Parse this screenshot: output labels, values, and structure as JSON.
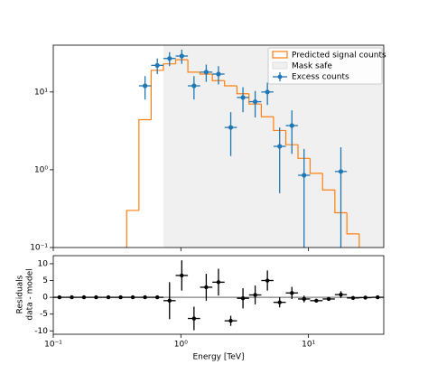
{
  "chart_data": [
    {
      "type": "histogram",
      "bins": [
        0.1,
        0.125,
        0.156,
        0.194,
        0.242,
        0.302,
        0.376,
        0.469,
        0.585,
        0.73,
        0.91,
        1.135,
        1.415,
        1.765,
        2.2,
        2.75,
        3.42,
        4.27,
        5.32,
        6.64,
        8.28,
        10.3,
        12.9,
        16.1,
        20.0,
        25.0,
        31.2,
        38.9
      ],
      "series": [
        {
          "name": "Predicted signal counts",
          "color": "#ff7f0e",
          "values": [
            0,
            0,
            0,
            0,
            0,
            0,
            0.3,
            4.4,
            19,
            23,
            26,
            18,
            17,
            14,
            12,
            9.5,
            7,
            4.8,
            3.2,
            2.1,
            1.4,
            0.9,
            0.55,
            0.28,
            0.15,
            0,
            0
          ]
        },
        {
          "name": "Excess counts",
          "color": "#1f77b4",
          "values": [
            null,
            null,
            null,
            null,
            null,
            null,
            null,
            12,
            22,
            27,
            29,
            12,
            18,
            17,
            3.5,
            8.5,
            7.5,
            10,
            2,
            3.7,
            0.85,
            null,
            null,
            0.95,
            null,
            null,
            null
          ],
          "errors": [
            null,
            null,
            null,
            null,
            null,
            null,
            null,
            4,
            5,
            5.5,
            6,
            4,
            4.5,
            4.5,
            2,
            3,
            2.8,
            3.2,
            1.5,
            2.1,
            1,
            null,
            null,
            1,
            null,
            null,
            null
          ]
        }
      ],
      "mask_safe": {
        "name": "Mask safe",
        "color": "#f0f0f0",
        "xlim": [
          0.73,
          38.9
        ]
      },
      "log_x": true,
      "log_y": true,
      "xlim": [
        0.1,
        38.9
      ],
      "ylim": [
        0.1,
        40
      ],
      "yticks": [
        {
          "value": 0.1,
          "label": "10⁻¹"
        },
        {
          "value": 1,
          "label": "10⁰"
        },
        {
          "value": 10,
          "label": "10¹"
        }
      ],
      "legend": "upper right"
    },
    {
      "type": "errorbar",
      "series": [
        {
          "color": "#000000",
          "values": [
            0,
            0,
            0,
            0,
            0,
            0,
            0,
            0,
            0,
            -1,
            6.5,
            -6.3,
            3,
            4.5,
            -7,
            -0.3,
            0.7,
            5,
            -1.5,
            1.3,
            -0.5,
            -1,
            -0.5,
            0.8,
            -0.2,
            -0.1,
            0
          ],
          "errors": [
            0,
            0,
            0,
            0,
            0,
            0,
            0,
            0,
            0,
            5.5,
            4.5,
            3.5,
            4,
            4,
            1.5,
            3,
            2.8,
            3,
            1.5,
            1.8,
            1,
            0.4,
            0.4,
            1,
            0.3,
            0.2,
            0.2
          ]
        }
      ],
      "log_x": true,
      "xlim": [
        0.1,
        38.9
      ],
      "ylim": [
        -11,
        12.4
      ],
      "xticks": [
        {
          "value": 0.1,
          "label": "10⁻¹"
        },
        {
          "value": 1,
          "label": "10⁰"
        },
        {
          "value": 10,
          "label": "10¹"
        }
      ],
      "yticks": [
        -10,
        -5,
        0,
        5,
        10
      ],
      "xlabel": "Energy [TeV]",
      "ylabel": [
        "Residuals",
        "data - model"
      ]
    }
  ]
}
